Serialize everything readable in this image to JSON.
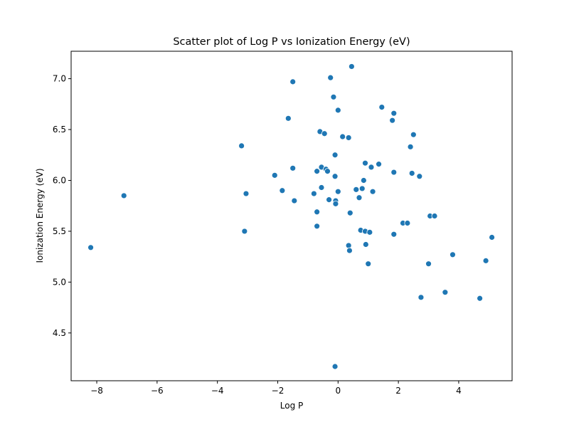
{
  "chart_data": {
    "type": "scatter",
    "title": "Scatter plot of Log P vs Ionization Energy (eV)",
    "xlabel": "Log P",
    "ylabel": "Ionization Energy (eV)",
    "xlim": [
      -8.85,
      5.77
    ],
    "ylim": [
      4.03,
      7.27
    ],
    "xticks": [
      -8,
      -6,
      -4,
      -2,
      0,
      2,
      4
    ],
    "xtick_labels": [
      "−8",
      "−6",
      "−4",
      "−2",
      "0",
      "2",
      "4"
    ],
    "yticks": [
      4.5,
      5.0,
      5.5,
      6.0,
      6.5,
      7.0
    ],
    "ytick_labels": [
      "4.5",
      "5.0",
      "5.5",
      "6.0",
      "6.5",
      "7.0"
    ],
    "grid": false,
    "marker_color": "#1f77b4",
    "points": [
      {
        "x": -8.2,
        "y": 5.34
      },
      {
        "x": -7.1,
        "y": 5.85
      },
      {
        "x": -3.2,
        "y": 6.34
      },
      {
        "x": -3.1,
        "y": 5.5
      },
      {
        "x": -3.05,
        "y": 5.87
      },
      {
        "x": -2.1,
        "y": 6.05
      },
      {
        "x": -1.85,
        "y": 5.9
      },
      {
        "x": -1.65,
        "y": 6.61
      },
      {
        "x": -1.5,
        "y": 6.97
      },
      {
        "x": -1.5,
        "y": 6.12
      },
      {
        "x": -1.45,
        "y": 5.8
      },
      {
        "x": -0.8,
        "y": 5.87
      },
      {
        "x": -0.7,
        "y": 6.09
      },
      {
        "x": -0.7,
        "y": 5.69
      },
      {
        "x": -0.7,
        "y": 5.55
      },
      {
        "x": -0.6,
        "y": 6.48
      },
      {
        "x": -0.55,
        "y": 6.13
      },
      {
        "x": -0.55,
        "y": 5.93
      },
      {
        "x": -0.45,
        "y": 6.46
      },
      {
        "x": -0.4,
        "y": 6.11
      },
      {
        "x": -0.35,
        "y": 6.09
      },
      {
        "x": -0.3,
        "y": 5.81
      },
      {
        "x": -0.25,
        "y": 7.01
      },
      {
        "x": -0.15,
        "y": 6.82
      },
      {
        "x": -0.1,
        "y": 6.25
      },
      {
        "x": -0.1,
        "y": 6.04
      },
      {
        "x": -0.08,
        "y": 5.8
      },
      {
        "x": -0.08,
        "y": 5.77
      },
      {
        "x": -0.1,
        "y": 4.17
      },
      {
        "x": 0.0,
        "y": 6.69
      },
      {
        "x": 0.0,
        "y": 5.89
      },
      {
        "x": 0.15,
        "y": 6.43
      },
      {
        "x": 0.35,
        "y": 6.42
      },
      {
        "x": 0.35,
        "y": 5.36
      },
      {
        "x": 0.38,
        "y": 5.31
      },
      {
        "x": 0.4,
        "y": 5.68
      },
      {
        "x": 0.45,
        "y": 7.12
      },
      {
        "x": 0.6,
        "y": 5.91
      },
      {
        "x": 0.7,
        "y": 5.83
      },
      {
        "x": 0.75,
        "y": 5.51
      },
      {
        "x": 0.8,
        "y": 5.92
      },
      {
        "x": 0.85,
        "y": 6.0
      },
      {
        "x": 0.9,
        "y": 6.17
      },
      {
        "x": 0.9,
        "y": 5.5
      },
      {
        "x": 0.92,
        "y": 5.37
      },
      {
        "x": 1.0,
        "y": 5.18
      },
      {
        "x": 1.05,
        "y": 5.49
      },
      {
        "x": 1.1,
        "y": 6.13
      },
      {
        "x": 1.15,
        "y": 5.89
      },
      {
        "x": 1.35,
        "y": 6.16
      },
      {
        "x": 1.45,
        "y": 6.72
      },
      {
        "x": 1.8,
        "y": 6.59
      },
      {
        "x": 1.85,
        "y": 6.66
      },
      {
        "x": 1.85,
        "y": 6.08
      },
      {
        "x": 1.85,
        "y": 5.47
      },
      {
        "x": 2.15,
        "y": 5.58
      },
      {
        "x": 2.3,
        "y": 5.58
      },
      {
        "x": 2.4,
        "y": 6.33
      },
      {
        "x": 2.45,
        "y": 6.07
      },
      {
        "x": 2.5,
        "y": 6.45
      },
      {
        "x": 2.7,
        "y": 6.04
      },
      {
        "x": 2.75,
        "y": 4.85
      },
      {
        "x": 3.0,
        "y": 5.18
      },
      {
        "x": 3.05,
        "y": 5.65
      },
      {
        "x": 3.2,
        "y": 5.65
      },
      {
        "x": 3.55,
        "y": 4.9
      },
      {
        "x": 3.8,
        "y": 5.27
      },
      {
        "x": 4.7,
        "y": 4.84
      },
      {
        "x": 4.9,
        "y": 5.21
      },
      {
        "x": 5.1,
        "y": 5.44
      }
    ]
  }
}
